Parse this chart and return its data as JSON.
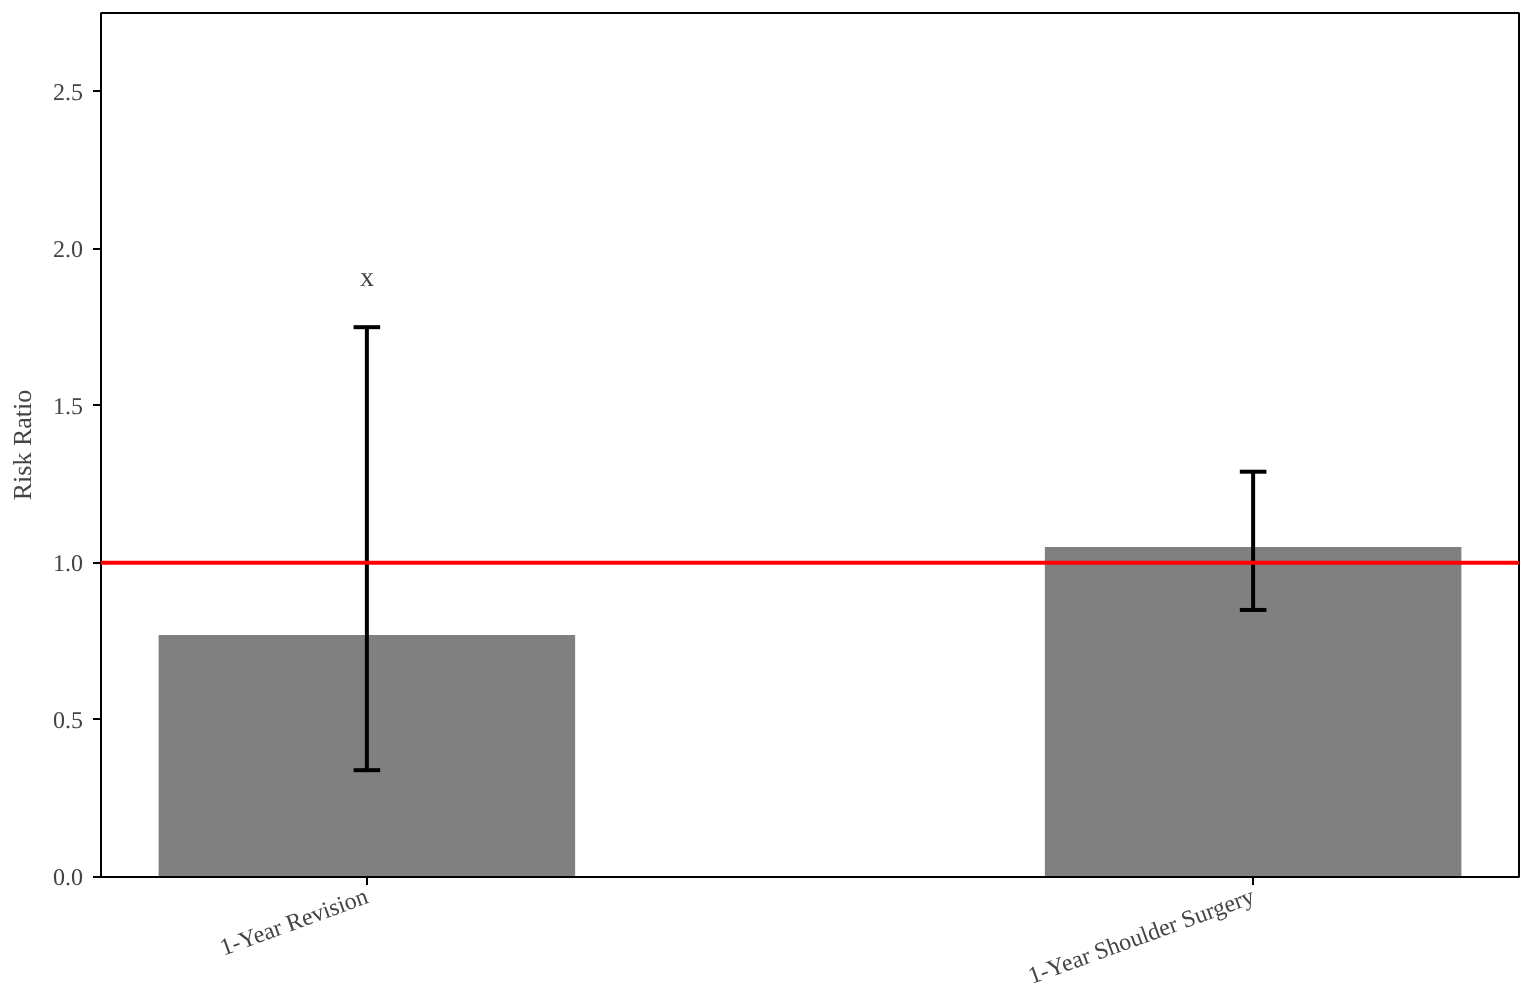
{
  "chart_data": {
    "type": "bar",
    "ylabel": "Risk Ratio",
    "categories": [
      "1-Year Revision",
      "1-Year Shoulder Surgery"
    ],
    "series": [
      {
        "color": "#808080",
        "values": [
          0.77,
          1.05
        ],
        "errors": [
          [
            0.34,
            1.75
          ],
          [
            0.85,
            1.29
          ]
        ]
      }
    ],
    "ylim": [
      0,
      2.75
    ],
    "yticks": [
      {
        "value": 0,
        "label": "0.0"
      },
      {
        "value": 0.5,
        "label": "0.5"
      },
      {
        "value": 1,
        "label": "1.0"
      },
      {
        "value": 1.5,
        "label": "1.5"
      },
      {
        "value": 2,
        "label": "2.0"
      },
      {
        "value": 2.5,
        "label": "2.5"
      }
    ],
    "ref_lines": [
      {
        "axis": "y",
        "value": 1.0,
        "label": null,
        "color": "#ff0000"
      }
    ],
    "annotations": [
      "x"
    ],
    "grid": false
  }
}
